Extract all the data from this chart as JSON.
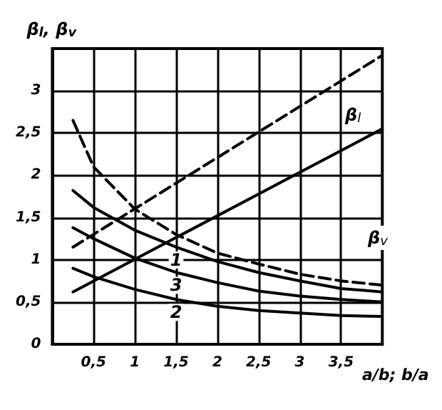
{
  "chart_data": {
    "type": "line",
    "xlabel": "a/b; b/a",
    "ylabel": "β$_{l}$, β$_{v}$",
    "xlim": [
      0,
      4
    ],
    "ylim": [
      0,
      3.5
    ],
    "xticks": [
      {
        "value": 0.5,
        "label": "0,5"
      },
      1,
      {
        "value": 1.5,
        "label": "1,5"
      },
      2,
      {
        "value": 2.5,
        "label": "2,5"
      },
      3,
      {
        "value": 3.5,
        "label": "3,5"
      }
    ],
    "yticks": [
      0,
      {
        "value": 0.5,
        "label": "0,5"
      },
      1,
      {
        "value": 1.5,
        "label": "1,5"
      },
      2,
      {
        "value": 2.5,
        "label": "2,5"
      },
      3
    ],
    "grid": true,
    "marker": "none",
    "series": [
      {
        "color": "#000000",
        "line_style": "dashed",
        "x": [
          0.25,
          4
        ],
        "values": [
          1.15,
          3.42
        ]
      },
      {
        "color": "#000000",
        "line_style": "solid",
        "x": [
          0.25,
          4
        ],
        "values": [
          0.62,
          2.55
        ]
      },
      {
        "color": "#000000",
        "line_style": "dashed",
        "x": [
          0.25,
          0.5,
          1,
          1.5,
          2,
          2.5,
          3,
          3.5,
          4
        ],
        "values": [
          2.65,
          2.1,
          1.6,
          1.3,
          1.08,
          0.95,
          0.83,
          0.75,
          0.7
        ]
      },
      {
        "name": "1",
        "color": "#000000",
        "line_style": "solid",
        "x": [
          0.25,
          0.5,
          1,
          1.5,
          2,
          2.5,
          3,
          3.5,
          4
        ],
        "values": [
          1.82,
          1.62,
          1.35,
          1.15,
          0.98,
          0.85,
          0.75,
          0.66,
          0.62
        ]
      },
      {
        "name": "3",
        "color": "#000000",
        "line_style": "solid",
        "x": [
          0.25,
          0.5,
          1,
          1.5,
          2,
          2.5,
          3,
          3.5,
          4
        ],
        "values": [
          1.38,
          1.25,
          1.02,
          0.85,
          0.73,
          0.63,
          0.57,
          0.53,
          0.5
        ]
      },
      {
        "name": "2",
        "color": "#000000",
        "line_style": "solid",
        "x": [
          0.25,
          0.5,
          1,
          1.5,
          2,
          2.5,
          3,
          3.5,
          4
        ],
        "values": [
          0.9,
          0.8,
          0.65,
          0.53,
          0.45,
          0.4,
          0.37,
          0.34,
          0.33
        ]
      }
    ],
    "annotations": [
      "β$_{l}$",
      "β$_{v}$"
    ]
  }
}
